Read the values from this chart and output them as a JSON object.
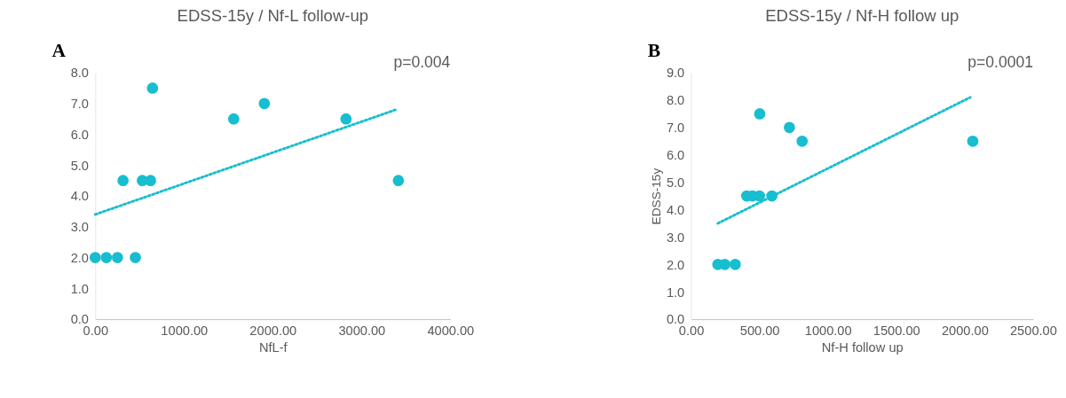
{
  "chart_data": [
    {
      "type": "scatter",
      "title": "EDSS-15y / Nf-L follow-up",
      "xlabel": "NfL-f",
      "annotations": [
        "A",
        "p=0.004"
      ],
      "xlim": [
        0,
        4000
      ],
      "xticks": [
        {
          "value": 0,
          "label": "0.00"
        },
        {
          "value": 1000,
          "label": "1000.00"
        },
        {
          "value": 2000,
          "label": "2000.00"
        },
        {
          "value": 3000,
          "label": "3000.00"
        },
        {
          "value": 4000,
          "label": "4000.00"
        }
      ],
      "ylim": [
        0,
        8
      ],
      "yticks": [
        {
          "value": 0,
          "label": "0.0"
        },
        {
          "value": 1,
          "label": "1.0"
        },
        {
          "value": 2,
          "label": "2.0"
        },
        {
          "value": 3,
          "label": "3.0"
        },
        {
          "value": 4,
          "label": "4.0"
        },
        {
          "value": 5,
          "label": "5.0"
        },
        {
          "value": 6,
          "label": "6.0"
        },
        {
          "value": 7,
          "label": "7.0"
        },
        {
          "value": 8,
          "label": "8.0"
        }
      ],
      "grid": false,
      "marker": "circle",
      "series": [
        {
          "color": "#17becf",
          "x": [
            0,
            125,
            250,
            313,
            452,
            530,
            623,
            645,
            1560,
            1905,
            2825,
            3415
          ],
          "values": [
            2,
            2,
            2,
            4.5,
            2,
            4.5,
            4.5,
            7.5,
            6.5,
            7,
            6.5,
            4.5
          ]
        },
        {
          "type": "line",
          "marker": "none",
          "line_style": "dotted",
          "color": "#17becf",
          "x": [
            0,
            3387
          ],
          "values": [
            3.4,
            6.8
          ]
        }
      ]
    },
    {
      "type": "scatter",
      "title": "EDSS-15y / Nf-H follow up",
      "xlabel": "Nf-H follow up",
      "ylabel": "EDSS-15y",
      "annotations": [
        "B",
        "p=0.0001"
      ],
      "xlim": [
        0,
        2500
      ],
      "xticks": [
        {
          "value": 0,
          "label": "0.00"
        },
        {
          "value": 500,
          "label": "500.00"
        },
        {
          "value": 1000,
          "label": "1000.00"
        },
        {
          "value": 1500,
          "label": "1500.00"
        },
        {
          "value": 2000,
          "label": "2000.00"
        },
        {
          "value": 2500,
          "label": "2500.00"
        }
      ],
      "ylim": [
        0,
        9
      ],
      "yticks": [
        {
          "value": 0,
          "label": "0.0"
        },
        {
          "value": 1,
          "label": "1.0"
        },
        {
          "value": 2,
          "label": "2.0"
        },
        {
          "value": 3,
          "label": "3.0"
        },
        {
          "value": 4,
          "label": "4.0"
        },
        {
          "value": 5,
          "label": "5.0"
        },
        {
          "value": 6,
          "label": "6.0"
        },
        {
          "value": 7,
          "label": "7.0"
        },
        {
          "value": 8,
          "label": "8.0"
        },
        {
          "value": 9,
          "label": "9.0"
        }
      ],
      "grid": false,
      "marker": "circle",
      "series": [
        {
          "color": "#17becf",
          "x": [
            196,
            247,
            323,
            407,
            449,
            500,
            591,
            502,
            719,
            812,
            2059
          ],
          "values": [
            2,
            2,
            2,
            4.5,
            4.5,
            4.5,
            4.5,
            7.5,
            7,
            6.5,
            6.5
          ]
        },
        {
          "type": "line",
          "marker": "none",
          "line_style": "dotted",
          "color": "#17becf",
          "x": [
            196,
            2040
          ],
          "values": [
            3.5,
            8.1
          ]
        }
      ]
    }
  ]
}
